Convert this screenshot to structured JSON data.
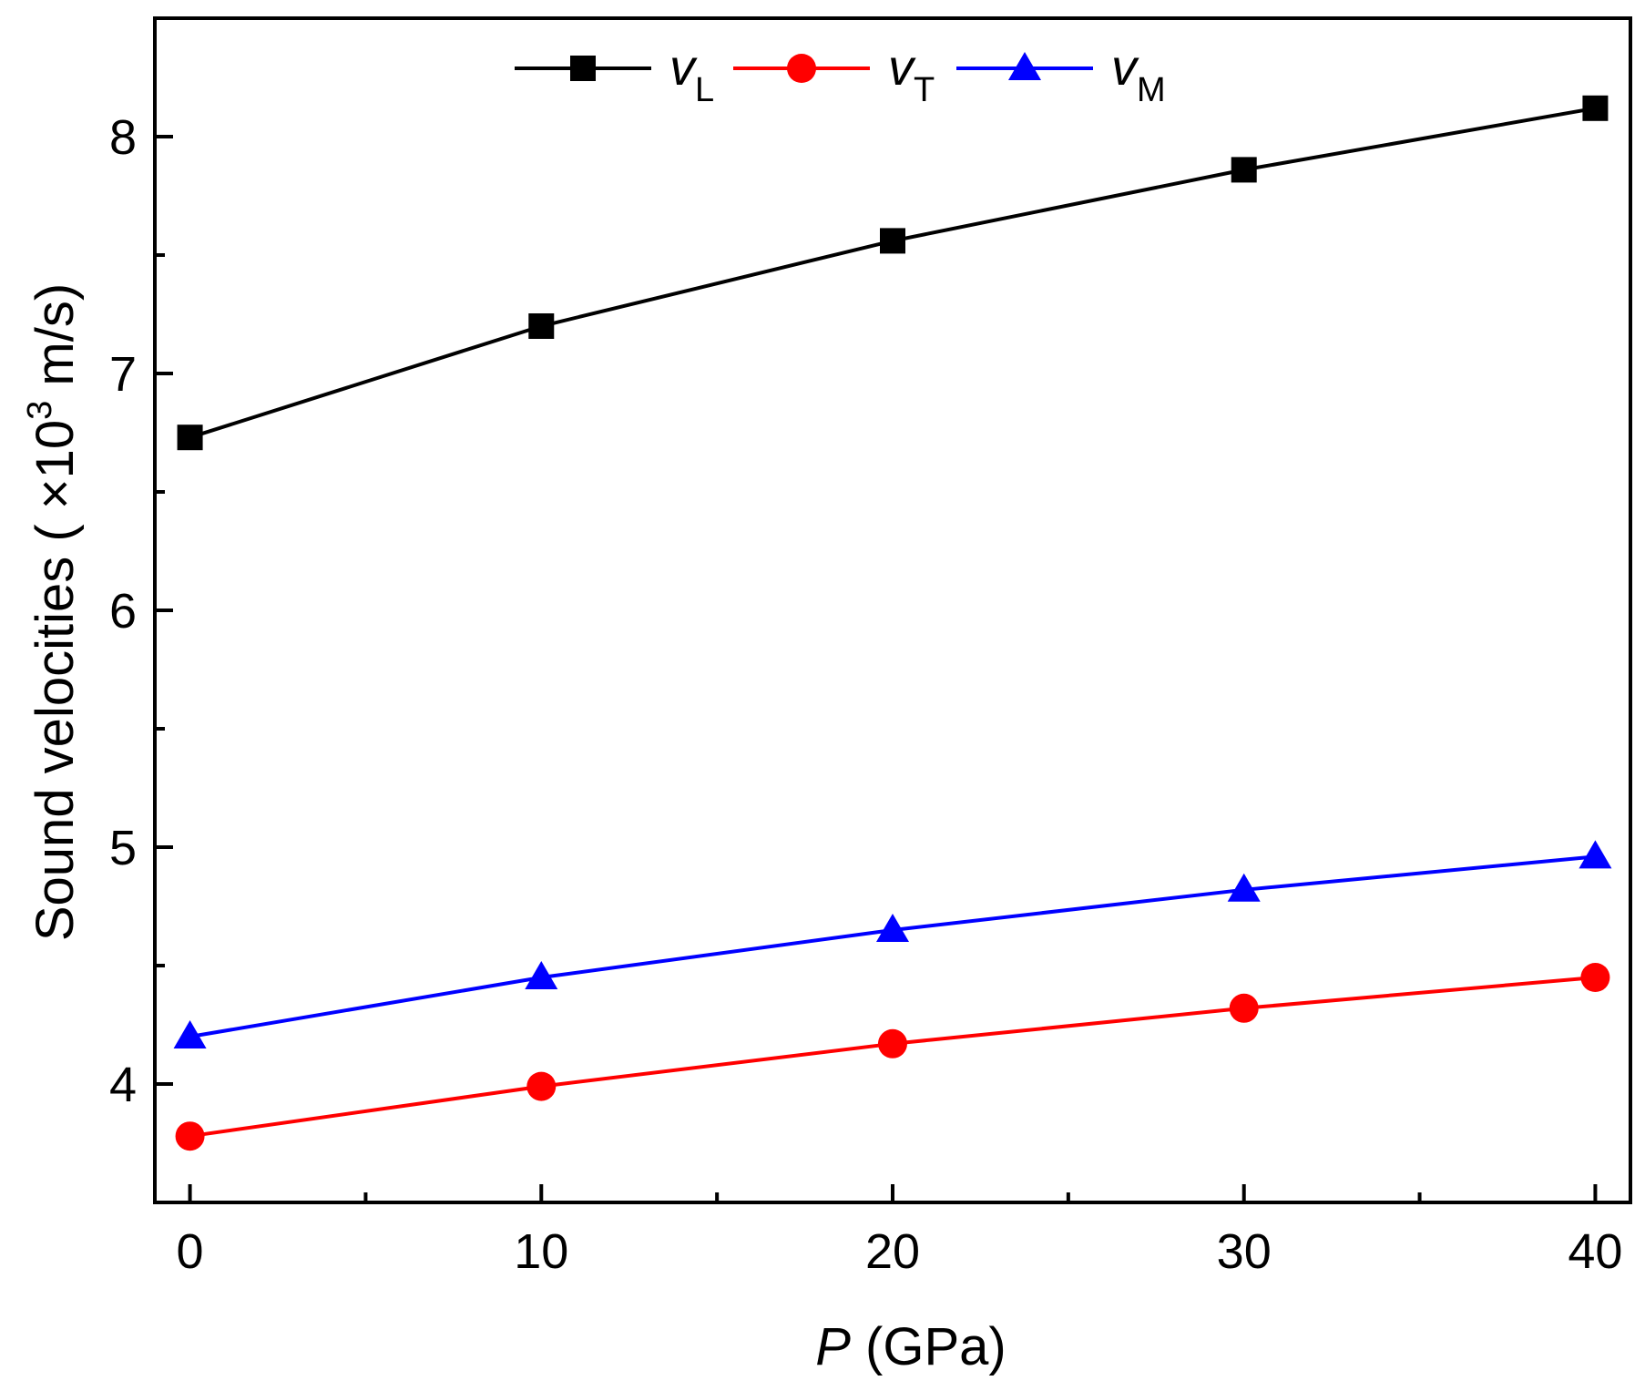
{
  "chart_data": {
    "type": "line",
    "title": "",
    "xlabel": {
      "var": "P",
      "unit": " (GPa)"
    },
    "ylabel": {
      "prefix": "Sound velocities ( ×10",
      "sup": "3",
      "suffix": " m/s)"
    },
    "xlim": [
      -1,
      41
    ],
    "ylim": [
      3.5,
      8.5
    ],
    "xticks": [
      0,
      10,
      20,
      30,
      40
    ],
    "xtick_labels": [
      "0",
      "10",
      "20",
      "30",
      "40"
    ],
    "yticks": [
      4,
      5,
      6,
      7,
      8
    ],
    "ytick_labels": [
      "4",
      "5",
      "6",
      "7",
      "8"
    ],
    "x": [
      0,
      10,
      20,
      30,
      40
    ],
    "series": [
      {
        "name": "vL",
        "symbol": "v",
        "subscript": "L",
        "color": "#000000",
        "marker": "square",
        "values": [
          6.73,
          7.2,
          7.56,
          7.86,
          8.12
        ]
      },
      {
        "name": "vT",
        "symbol": "v",
        "subscript": "T",
        "color": "#ff0000",
        "marker": "circle",
        "values": [
          3.78,
          3.99,
          4.17,
          4.32,
          4.45
        ]
      },
      {
        "name": "vM",
        "symbol": "v",
        "subscript": "M",
        "color": "#0000ff",
        "marker": "triangle",
        "values": [
          4.2,
          4.45,
          4.65,
          4.82,
          4.96
        ]
      }
    ],
    "legend_position": "top-center"
  }
}
